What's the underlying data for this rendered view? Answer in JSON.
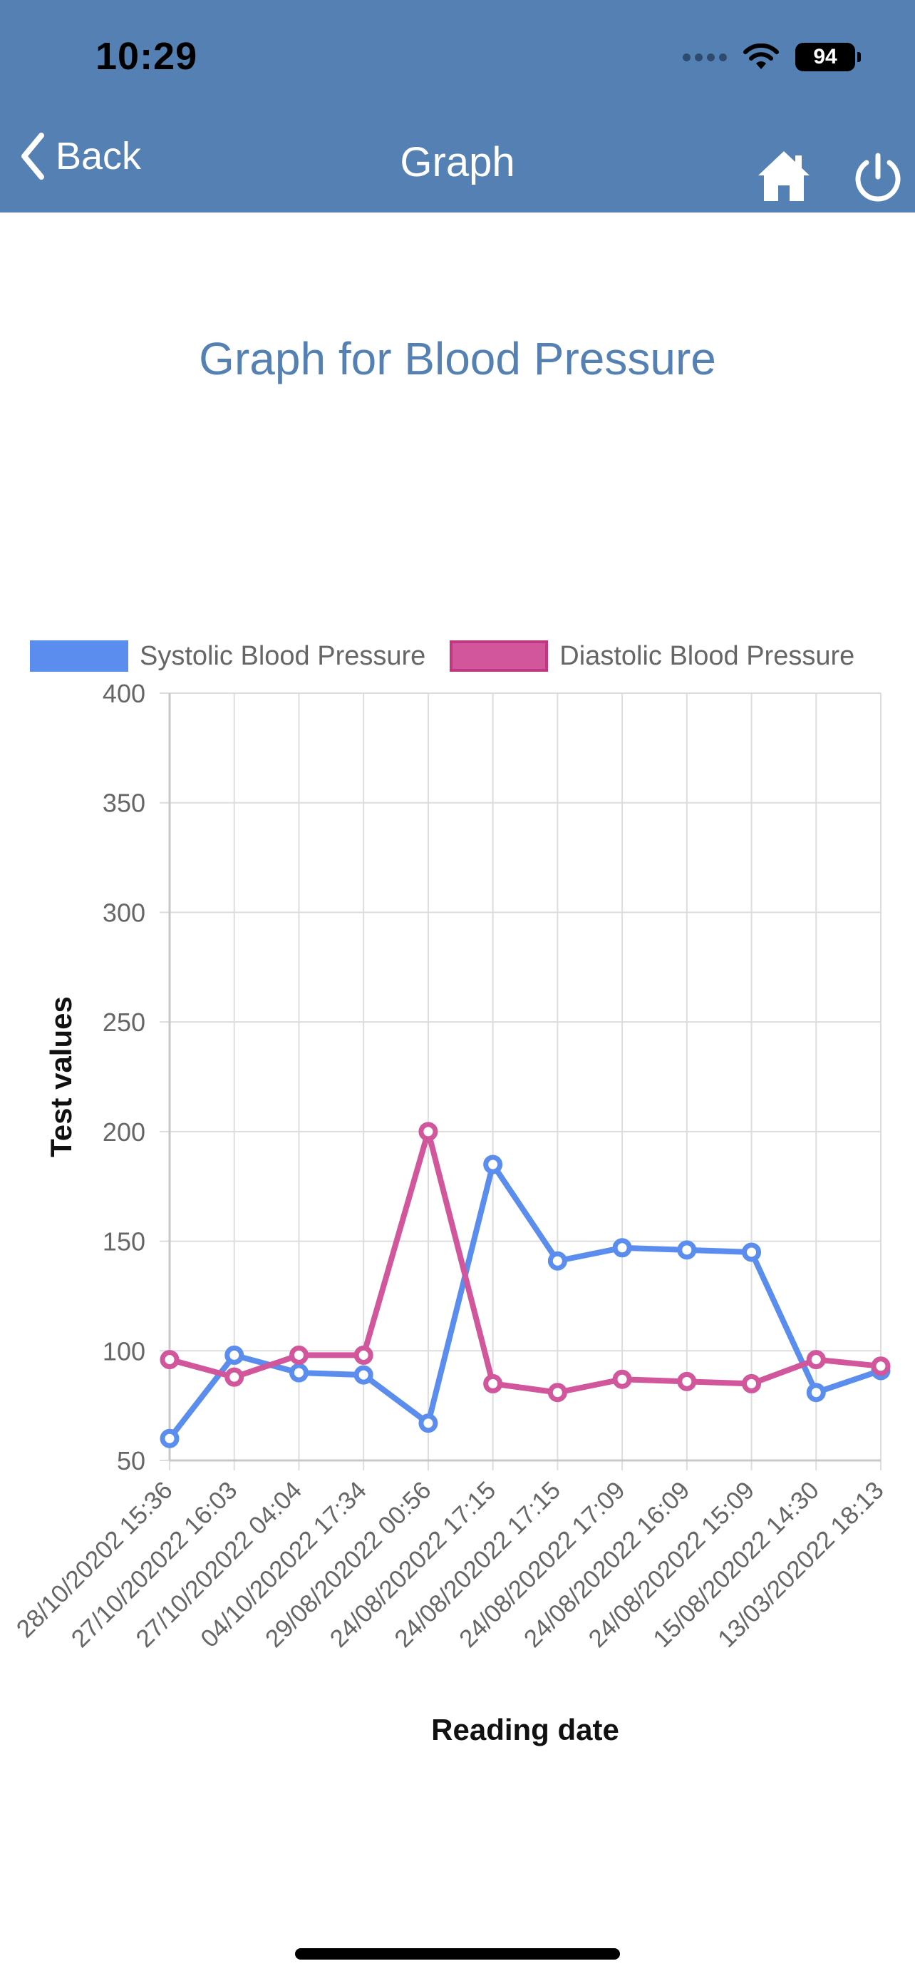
{
  "status": {
    "time": "10:29",
    "battery": "94"
  },
  "nav": {
    "back_label": "Back",
    "title": "Graph"
  },
  "page": {
    "title": "Graph for Blood Pressure"
  },
  "chart_data": {
    "type": "line",
    "categories": [
      "28/10/20202 15:36",
      "27/10/202022 16:03",
      "27/10/202022 04:04",
      "04/10/202022 17:34",
      "29/08/202022 00:56",
      "24/08/202022 17:15",
      "24/08/202022 17:15",
      "24/08/202022 17:09",
      "24/08/202022 16:09",
      "24/08/202022 15:09",
      "15/08/202022 14:30",
      "13/03/202022 18:13"
    ],
    "series": [
      {
        "name": "Systolic Blood Pressure",
        "color": "#5b8def",
        "values": [
          60,
          98,
          90,
          89,
          67,
          185,
          141,
          147,
          146,
          145,
          81,
          91
        ]
      },
      {
        "name": "Diastolic Blood Pressure",
        "color": "#d1569c",
        "values": [
          96,
          88,
          98,
          98,
          200,
          85,
          81,
          87,
          86,
          85,
          96,
          93
        ]
      }
    ],
    "xlabel": "Reading date",
    "ylabel": "Test values",
    "ylim": [
      50,
      400
    ],
    "yticks": [
      50,
      100,
      150,
      200,
      250,
      300,
      350,
      400
    ],
    "grid": true,
    "legend_position": "top"
  }
}
